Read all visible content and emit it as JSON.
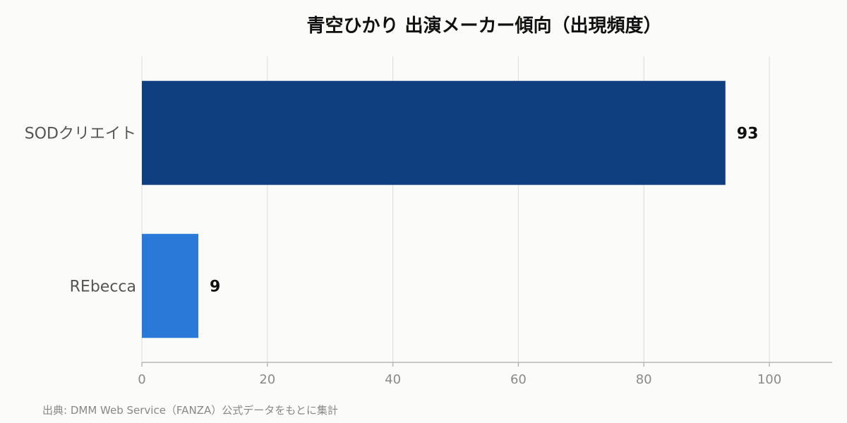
{
  "chart_data": {
    "type": "bar",
    "orientation": "horizontal",
    "title": "青空ひかり 出演メーカー傾向（出現頻度）",
    "categories": [
      "SODクリエイト",
      "REbecca"
    ],
    "values": [
      93,
      9
    ],
    "colors": [
      "#103f80",
      "#2a78d8"
    ],
    "xlim": [
      0,
      110
    ],
    "xticks": [
      0,
      20,
      40,
      60,
      80,
      100
    ],
    "grid": "vertical",
    "source": "出典: DMM Web Service（FANZA）公式データをもとに集計"
  }
}
